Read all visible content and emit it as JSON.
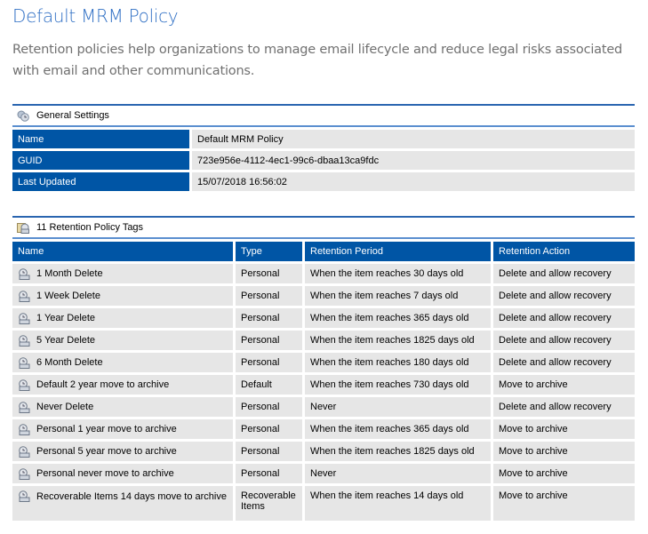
{
  "page": {
    "title": "Default MRM Policy",
    "description": "Retention policies help organizations to manage email lifecycle and reduce legal risks associated with email and other communications."
  },
  "general": {
    "heading": "General Settings",
    "icon": "settings-icon",
    "rows": [
      {
        "label": "Name",
        "value": "Default MRM Policy"
      },
      {
        "label": "GUID",
        "value": "723e956e-4112-4ec1-99c6-dbaa13ca9fdc"
      },
      {
        "label": "Last Updated",
        "value": "15/07/2018 16:56:02"
      }
    ]
  },
  "tags": {
    "heading": "11 Retention Policy Tags",
    "icon": "retention-tags-icon",
    "row_icon": "retention-tag-icon",
    "columns": [
      "Name",
      "Type",
      "Retention Period",
      "Retention Action"
    ],
    "rows": [
      [
        "1 Month Delete",
        "Personal",
        "When the item reaches 30 days old",
        "Delete and allow recovery"
      ],
      [
        "1 Week Delete",
        "Personal",
        "When the item reaches 7 days old",
        "Delete and allow recovery"
      ],
      [
        "1 Year Delete",
        "Personal",
        "When the item reaches 365 days old",
        "Delete and allow recovery"
      ],
      [
        "5 Year Delete",
        "Personal",
        "When the item reaches 1825 days old",
        "Delete and allow recovery"
      ],
      [
        "6 Month Delete",
        "Personal",
        "When the item reaches 180 days old",
        "Delete and allow recovery"
      ],
      [
        "Default 2 year move to archive",
        "Default",
        "When the item reaches 730 days old",
        "Move to archive"
      ],
      [
        "Never Delete",
        "Personal",
        "Never",
        "Delete and allow recovery"
      ],
      [
        "Personal 1 year move to archive",
        "Personal",
        "When the item reaches 365 days old",
        "Move to archive"
      ],
      [
        "Personal 5 year move to archive",
        "Personal",
        "When the item reaches 1825 days old",
        "Move to archive"
      ],
      [
        "Personal never move to archive",
        "Personal",
        "Never",
        "Move to archive"
      ],
      [
        "Recoverable Items 14 days move to archive",
        "Recoverable Items",
        "When the item reaches 14 days old",
        "Move to archive"
      ]
    ]
  },
  "colors": {
    "header_blue": "#0055a5",
    "title_blue": "#2f6fc4",
    "cell_gray": "#e6e6e6"
  }
}
